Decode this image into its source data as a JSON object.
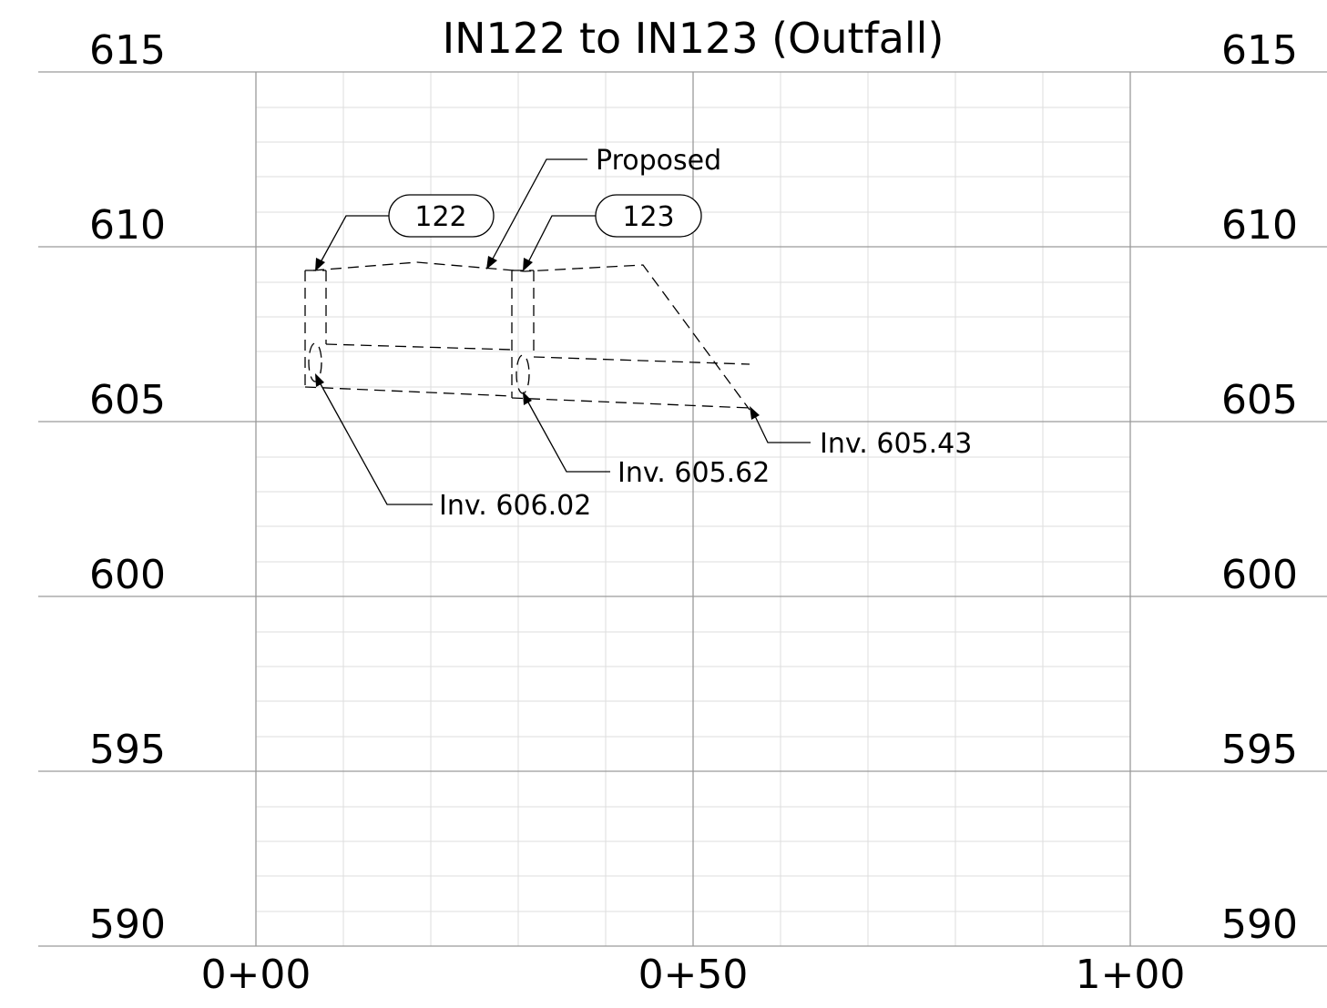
{
  "title": "IN122 to IN123 (Outfall)",
  "elevation_labels": [
    "615",
    "610",
    "605",
    "600",
    "595",
    "590"
  ],
  "station_labels": [
    "0+00",
    "0+50",
    "1+00"
  ],
  "structures": [
    {
      "label": "122"
    },
    {
      "label": "123"
    }
  ],
  "callouts": {
    "proposed": "Proposed",
    "inv_122": "Inv. 606.02",
    "inv_123": "Inv. 605.62",
    "inv_outfall": "Inv. 605.43"
  }
}
